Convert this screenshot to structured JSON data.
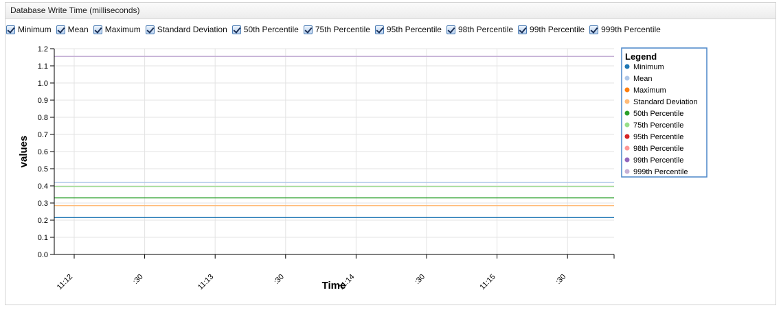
{
  "panel": {
    "title": "Database Write Time (milliseconds)"
  },
  "chart_data": {
    "type": "line",
    "xlabel": "Time",
    "ylabel": "values",
    "legend_title": "Legend",
    "legend_position": "right",
    "grid": true,
    "ylim": [
      0,
      1.2
    ],
    "yticks": [
      "0.0",
      "0.1",
      "0.2",
      "0.3",
      "0.4",
      "0.5",
      "0.6",
      "0.7",
      "0.8",
      "0.9",
      "1.0",
      "1.1",
      "1.2"
    ],
    "xticks": [
      "11:12",
      ":30",
      "11:13",
      ":30",
      "11:14",
      ":30",
      "11:15",
      ":30"
    ],
    "series": [
      {
        "name": "Minimum",
        "color": "#1f77b4",
        "value": 0.215
      },
      {
        "name": "Mean",
        "color": "#aec7e8",
        "value": 0.42
      },
      {
        "name": "Maximum",
        "color": "#ff7f0e",
        "value": null
      },
      {
        "name": "Standard Deviation",
        "color": "#ffbb78",
        "value": 0.285
      },
      {
        "name": "50th Percentile",
        "color": "#2ca02c",
        "value": 0.33
      },
      {
        "name": "75th Percentile",
        "color": "#98df8a",
        "value": 0.395
      },
      {
        "name": "95th Percentile",
        "color": "#d62728",
        "value": null
      },
      {
        "name": "98th Percentile",
        "color": "#ff9896",
        "value": null
      },
      {
        "name": "99th Percentile",
        "color": "#9467bd",
        "value": null
      },
      {
        "name": "999th Percentile",
        "color": "#c5b0d5",
        "value": 1.155
      }
    ]
  }
}
